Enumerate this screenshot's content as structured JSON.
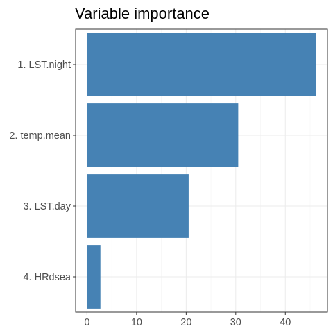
{
  "chart_data": {
    "type": "bar",
    "orientation": "horizontal",
    "title": "Variable importance",
    "xlabel": "",
    "ylabel": "",
    "categories": [
      "1. LST.night",
      "2. temp.mean",
      "3. LST.day",
      "4. HRdsea"
    ],
    "values": [
      46.2,
      30.5,
      20.5,
      2.7
    ],
    "xlim": [
      -2.3,
      48.5
    ],
    "xticks": [
      0,
      10,
      20,
      30,
      40
    ],
    "grid": true,
    "legend": "none",
    "colors": {
      "bar": "#4682B4",
      "grid": "#EBEBEB",
      "border": "#333333",
      "tick_text": "#4D4D4D",
      "title_text": "#000000"
    }
  }
}
